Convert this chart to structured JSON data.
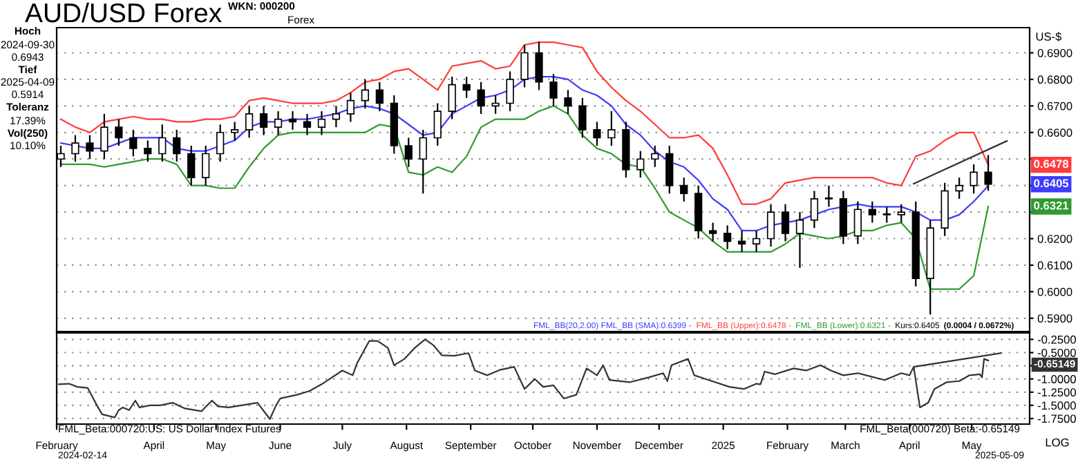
{
  "chart_data": [
    {
      "type": "candlestick",
      "title": "AUD/USD Forex",
      "ylabel": "US-$",
      "x": [
        "2024-02-16",
        "2024-02-23",
        "2024-03-01",
        "2024-03-08",
        "2024-03-15",
        "2024-03-22",
        "2024-03-29",
        "2024-04-05",
        "2024-04-12",
        "2024-04-19",
        "2024-04-26",
        "2024-05-03",
        "2024-05-10",
        "2024-05-17",
        "2024-05-24",
        "2024-05-31",
        "2024-06-07",
        "2024-06-14",
        "2024-06-21",
        "2024-06-28",
        "2024-07-05",
        "2024-07-12",
        "2024-07-19",
        "2024-07-26",
        "2024-08-02",
        "2024-08-09",
        "2024-08-16",
        "2024-08-23",
        "2024-08-30",
        "2024-09-06",
        "2024-09-13",
        "2024-09-20",
        "2024-09-27",
        "2024-10-04",
        "2024-10-11",
        "2024-10-18",
        "2024-10-25",
        "2024-11-01",
        "2024-11-08",
        "2024-11-15",
        "2024-11-22",
        "2024-11-29",
        "2024-12-06",
        "2024-12-13",
        "2024-12-20",
        "2024-12-27",
        "2025-01-03",
        "2025-01-10",
        "2025-01-17",
        "2025-01-24",
        "2025-01-31",
        "2025-02-07",
        "2025-02-14",
        "2025-02-21",
        "2025-02-28",
        "2025-03-07",
        "2025-03-14",
        "2025-03-21",
        "2025-03-28",
        "2025-04-04",
        "2025-04-11",
        "2025-04-18",
        "2025-04-25",
        "2025-05-02",
        "2025-05-09"
      ],
      "ohlc": [
        [
          0.65,
          0.655,
          0.647,
          0.652
        ],
        [
          0.652,
          0.659,
          0.649,
          0.656
        ],
        [
          0.656,
          0.659,
          0.65,
          0.653
        ],
        [
          0.653,
          0.667,
          0.65,
          0.662
        ],
        [
          0.662,
          0.665,
          0.655,
          0.658
        ],
        [
          0.658,
          0.661,
          0.651,
          0.654
        ],
        [
          0.654,
          0.657,
          0.649,
          0.652
        ],
        [
          0.652,
          0.663,
          0.649,
          0.658
        ],
        [
          0.658,
          0.661,
          0.649,
          0.652
        ],
        [
          0.652,
          0.655,
          0.64,
          0.643
        ],
        [
          0.643,
          0.655,
          0.64,
          0.652
        ],
        [
          0.652,
          0.663,
          0.649,
          0.66
        ],
        [
          0.66,
          0.664,
          0.657,
          0.661
        ],
        [
          0.661,
          0.67,
          0.658,
          0.667
        ],
        [
          0.667,
          0.67,
          0.659,
          0.662
        ],
        [
          0.662,
          0.668,
          0.659,
          0.665
        ],
        [
          0.665,
          0.668,
          0.661,
          0.664
        ],
        [
          0.664,
          0.667,
          0.659,
          0.662
        ],
        [
          0.662,
          0.668,
          0.659,
          0.665
        ],
        [
          0.665,
          0.67,
          0.662,
          0.667
        ],
        [
          0.667,
          0.675,
          0.664,
          0.672
        ],
        [
          0.672,
          0.68,
          0.669,
          0.676
        ],
        [
          0.676,
          0.679,
          0.668,
          0.671
        ],
        [
          0.671,
          0.674,
          0.652,
          0.655
        ],
        [
          0.655,
          0.658,
          0.647,
          0.65
        ],
        [
          0.65,
          0.661,
          0.637,
          0.658
        ],
        [
          0.658,
          0.671,
          0.655,
          0.668
        ],
        [
          0.668,
          0.681,
          0.665,
          0.678
        ],
        [
          0.678,
          0.681,
          0.673,
          0.676
        ],
        [
          0.676,
          0.679,
          0.667,
          0.67
        ],
        [
          0.67,
          0.674,
          0.667,
          0.671
        ],
        [
          0.671,
          0.683,
          0.668,
          0.68
        ],
        [
          0.68,
          0.693,
          0.677,
          0.69
        ],
        [
          0.69,
          0.6943,
          0.676,
          0.679
        ],
        [
          0.679,
          0.682,
          0.67,
          0.673
        ],
        [
          0.673,
          0.676,
          0.667,
          0.67
        ],
        [
          0.67,
          0.673,
          0.658,
          0.661
        ],
        [
          0.661,
          0.664,
          0.655,
          0.658
        ],
        [
          0.658,
          0.668,
          0.655,
          0.661
        ],
        [
          0.661,
          0.664,
          0.643,
          0.646
        ],
        [
          0.646,
          0.653,
          0.643,
          0.65
        ],
        [
          0.65,
          0.655,
          0.647,
          0.652
        ],
        [
          0.652,
          0.655,
          0.637,
          0.64
        ],
        [
          0.64,
          0.643,
          0.634,
          0.637
        ],
        [
          0.637,
          0.64,
          0.62,
          0.623
        ],
        [
          0.623,
          0.626,
          0.619,
          0.622
        ],
        [
          0.622,
          0.625,
          0.616,
          0.619
        ],
        [
          0.619,
          0.623,
          0.615,
          0.618
        ],
        [
          0.618,
          0.623,
          0.615,
          0.62
        ],
        [
          0.62,
          0.633,
          0.617,
          0.63
        ],
        [
          0.63,
          0.633,
          0.619,
          0.622
        ],
        [
          0.622,
          0.63,
          0.609,
          0.627
        ],
        [
          0.627,
          0.638,
          0.624,
          0.635
        ],
        [
          0.635,
          0.64,
          0.632,
          0.635
        ],
        [
          0.635,
          0.638,
          0.618,
          0.621
        ],
        [
          0.621,
          0.634,
          0.618,
          0.631
        ],
        [
          0.631,
          0.634,
          0.626,
          0.629
        ],
        [
          0.629,
          0.632,
          0.626,
          0.629
        ],
        [
          0.629,
          0.633,
          0.626,
          0.63
        ],
        [
          0.63,
          0.634,
          0.602,
          0.605
        ],
        [
          0.605,
          0.627,
          0.5914,
          0.624
        ],
        [
          0.624,
          0.641,
          0.621,
          0.638
        ],
        [
          0.638,
          0.643,
          0.635,
          0.64
        ],
        [
          0.64,
          0.648,
          0.637,
          0.645
        ],
        [
          0.645,
          0.6515,
          0.638,
          0.6405
        ]
      ],
      "series": [
        {
          "type": "line",
          "color": "#3c3cff",
          "values": [
            0.656,
            0.655,
            0.654,
            0.654,
            0.656,
            0.658,
            0.658,
            0.658,
            0.654,
            0.653,
            0.653,
            0.655,
            0.657,
            0.662,
            0.664,
            0.664,
            0.665,
            0.665,
            0.666,
            0.667,
            0.669,
            0.67,
            0.669,
            0.667,
            0.663,
            0.659,
            0.66,
            0.667,
            0.67,
            0.673,
            0.674,
            0.676,
            0.68,
            0.681,
            0.681,
            0.68,
            0.676,
            0.674,
            0.67,
            0.663,
            0.659,
            0.653,
            0.649,
            0.647,
            0.642,
            0.635,
            0.631,
            0.623,
            0.623,
            0.625,
            0.626,
            0.627,
            0.629,
            0.631,
            0.632,
            0.633,
            0.632,
            0.632,
            0.632,
            0.63,
            0.627,
            0.627,
            0.629,
            0.634,
            0.6399
          ]
        },
        {
          "type": "line",
          "color": "#ff3c3c",
          "values": [
            0.665,
            0.662,
            0.66,
            0.664,
            0.665,
            0.666,
            0.665,
            0.665,
            0.664,
            0.664,
            0.665,
            0.665,
            0.666,
            0.672,
            0.673,
            0.672,
            0.671,
            0.671,
            0.671,
            0.672,
            0.675,
            0.679,
            0.68,
            0.683,
            0.684,
            0.68,
            0.676,
            0.685,
            0.686,
            0.687,
            0.684,
            0.685,
            0.693,
            0.694,
            0.694,
            0.693,
            0.692,
            0.683,
            0.677,
            0.672,
            0.668,
            0.663,
            0.658,
            0.658,
            0.659,
            0.654,
            0.644,
            0.633,
            0.633,
            0.635,
            0.641,
            0.642,
            0.643,
            0.643,
            0.643,
            0.643,
            0.643,
            0.641,
            0.64,
            0.651,
            0.653,
            0.657,
            0.66,
            0.66,
            0.6478
          ]
        },
        {
          "type": "line",
          "color": "#2e9a2e",
          "values": [
            0.648,
            0.648,
            0.648,
            0.647,
            0.648,
            0.649,
            0.65,
            0.65,
            0.648,
            0.64,
            0.64,
            0.639,
            0.639,
            0.647,
            0.654,
            0.659,
            0.66,
            0.66,
            0.66,
            0.66,
            0.66,
            0.66,
            0.663,
            0.662,
            0.645,
            0.644,
            0.647,
            0.645,
            0.651,
            0.662,
            0.665,
            0.665,
            0.665,
            0.668,
            0.67,
            0.667,
            0.659,
            0.654,
            0.652,
            0.648,
            0.647,
            0.639,
            0.63,
            0.627,
            0.624,
            0.619,
            0.615,
            0.615,
            0.615,
            0.615,
            0.618,
            0.622,
            0.621,
            0.62,
            0.621,
            0.623,
            0.623,
            0.625,
            0.626,
            0.62,
            0.601,
            0.601,
            0.601,
            0.606,
            0.6321
          ]
        },
        {
          "type": "line",
          "color": "#333333",
          "x": [
            "2025-04-03",
            "2025-05-18"
          ],
          "values": [
            0.6407,
            0.6568
          ]
        }
      ],
      "xlim": [
        "2024-02-14",
        "2025-05-29"
      ],
      "ylim": [
        0.585,
        0.6995
      ],
      "yticks": [
        {
          "value": 0.59,
          "label": "0.5900"
        },
        {
          "value": 0.6,
          "label": "0.6000"
        },
        {
          "value": 0.61,
          "label": "0.6100"
        },
        {
          "value": 0.62,
          "label": "0.6200"
        },
        {
          "value": 0.63,
          "label": null
        },
        {
          "value": 0.64,
          "label": null
        },
        {
          "value": 0.65,
          "label": null
        },
        {
          "value": 0.66,
          "label": "0.6600"
        },
        {
          "value": 0.67,
          "label": "0.6700"
        },
        {
          "value": 0.68,
          "label": "0.6800"
        },
        {
          "value": 0.69,
          "label": "0.6900"
        }
      ],
      "grid": "y",
      "tick_labels": "y",
      "annotations": [
        "WKN: 000200",
        "Forex",
        "Hoch",
        "2024-09-30",
        "0.6943",
        "Tief",
        "2025-04-09",
        "0.5914",
        "Toleranz",
        "17.39%",
        "Vol(250)",
        "10.10%",
        "FML_BB(20,2.00) FML_BB (SMA):0.6399 -",
        "FML_BB (Upper):0.6478 -",
        "FML_BB (Lower):0.6321 -",
        "Kurs:0.6405",
        "(0.0004 / 0.0672%)",
        {
          "text": "0.6478",
          "y": 0.6478
        },
        {
          "text": "0.6405",
          "y": 0.6405
        },
        {
          "text": "0.6321",
          "y": 0.6321
        }
      ]
    },
    {
      "type": "line",
      "x": [
        "2024-02-15",
        "2024-02-20",
        "2024-02-24",
        "2024-02-29",
        "2024-03-05",
        "2024-03-07",
        "2024-03-13",
        "2024-03-15",
        "2024-03-17",
        "2024-03-20",
        "2024-03-23",
        "2024-03-25",
        "2024-03-30",
        "2024-04-04",
        "2024-04-10",
        "2024-04-16",
        "2024-04-24",
        "2024-04-29",
        "2024-05-02",
        "2024-05-07",
        "2024-05-21",
        "2024-05-27",
        "2024-05-30",
        "2024-06-01",
        "2024-06-09",
        "2024-06-15",
        "2024-06-21",
        "2024-07-01",
        "2024-07-06",
        "2024-07-08",
        "2024-07-14",
        "2024-07-18",
        "2024-07-23",
        "2024-07-26",
        "2024-07-31",
        "2024-08-05",
        "2024-08-10",
        "2024-08-14",
        "2024-08-18",
        "2024-08-24",
        "2024-08-31",
        "2024-09-03",
        "2024-09-09",
        "2024-09-15",
        "2024-09-22",
        "2024-09-27",
        "2024-10-02",
        "2024-10-06",
        "2024-10-11",
        "2024-10-16",
        "2024-10-22",
        "2024-10-27",
        "2024-11-01",
        "2024-11-04",
        "2024-11-07",
        "2024-11-17",
        "2024-11-26",
        "2024-12-03",
        "2024-12-05",
        "2024-12-07",
        "2024-12-15",
        "2024-12-18",
        "2024-12-25",
        "2025-01-04",
        "2025-01-11",
        "2025-01-17",
        "2025-01-19",
        "2025-01-21",
        "2025-01-26",
        "2025-02-04",
        "2025-02-10",
        "2025-02-17",
        "2025-02-22",
        "2025-02-28",
        "2025-03-07",
        "2025-03-13",
        "2025-03-20",
        "2025-03-28",
        "2025-04-01",
        "2025-04-03",
        "2025-04-06",
        "2025-04-10",
        "2025-04-13",
        "2025-04-19",
        "2025-04-25",
        "2025-04-30",
        "2025-05-05",
        "2025-05-06",
        "2025-05-07",
        "2025-05-09"
      ],
      "series": [
        {
          "color": "#333333",
          "values": [
            -1.1,
            -1.09,
            -1.15,
            -1.17,
            -1.54,
            -1.67,
            -1.73,
            -1.59,
            -1.54,
            -1.59,
            -1.41,
            -1.54,
            -1.5,
            -1.5,
            -1.45,
            -1.56,
            -1.61,
            -1.41,
            -1.52,
            -1.54,
            -1.45,
            -1.76,
            -1.5,
            -1.37,
            -1.3,
            -1.23,
            -1.1,
            -0.84,
            -0.93,
            -0.71,
            -0.28,
            -0.28,
            -0.41,
            -0.74,
            -0.62,
            -0.41,
            -0.25,
            -0.36,
            -0.55,
            -0.56,
            -0.51,
            -0.84,
            -0.93,
            -0.83,
            -0.77,
            -1.19,
            -1.0,
            -1.15,
            -1.12,
            -1.37,
            -1.3,
            -0.8,
            -0.93,
            -0.74,
            -1.02,
            -1.06,
            -0.97,
            -0.89,
            -1.04,
            -0.74,
            -0.62,
            -0.93,
            -1.02,
            -1.15,
            -1.19,
            -1.09,
            -1.1,
            -0.86,
            -0.91,
            -0.8,
            -0.84,
            -0.74,
            -0.84,
            -0.93,
            -0.89,
            -0.95,
            -1.02,
            -0.89,
            -0.93,
            -0.77,
            -1.54,
            -1.45,
            -1.19,
            -1.06,
            -1.04,
            -0.93,
            -0.91,
            -0.97,
            -0.62,
            -0.65
          ]
        },
        {
          "color": "#333333",
          "x": [
            "2025-04-03",
            "2025-05-15"
          ],
          "values": [
            -0.77,
            -0.51
          ]
        }
      ],
      "xlim": [
        "2024-02-14",
        "2025-05-29"
      ],
      "ylim": [
        -1.855,
        -0.127
      ],
      "yticks": [
        {
          "value": -1.75,
          "label": "-1.7500"
        },
        {
          "value": -1.5,
          "label": "-1.5000"
        },
        {
          "value": -1.25,
          "label": "-1.2500"
        },
        {
          "value": -1.0,
          "label": "-1.0000"
        },
        {
          "value": -0.75,
          "label": null
        },
        {
          "value": -0.5,
          "label": "-0.5000"
        },
        {
          "value": -0.25,
          "label": "-0.2500"
        }
      ],
      "xticks": [
        {
          "value": "2024-02-14",
          "label": "February"
        },
        {
          "value": "2024-04-01",
          "label": "April"
        },
        {
          "value": "2024-05-01",
          "label": "May"
        },
        {
          "value": "2024-06-01",
          "label": "June"
        },
        {
          "value": "2024-07-01",
          "label": "July"
        },
        {
          "value": "2024-08-01",
          "label": "August"
        },
        {
          "value": "2024-09-01",
          "label": "September"
        },
        {
          "value": "2024-10-01",
          "label": "October"
        },
        {
          "value": "2024-11-01",
          "label": "November"
        },
        {
          "value": "2024-12-01",
          "label": "December"
        },
        {
          "value": "2025-01-01",
          "label": "2025"
        },
        {
          "value": "2025-02-01",
          "label": "February"
        },
        {
          "value": "2025-03-01",
          "label": "March"
        },
        {
          "value": "2025-04-01",
          "label": "April"
        },
        {
          "value": "2025-05-01",
          "label": "May"
        }
      ],
      "grid": "y",
      "annotations": [
        "FML_Beta:000720:US: US Dollar Index Futures",
        "FML_Beta(000720) Beta:-0.65149",
        "2024-02-14",
        "2025-05-09",
        "LOG",
        "-0.65149"
      ]
    }
  ]
}
